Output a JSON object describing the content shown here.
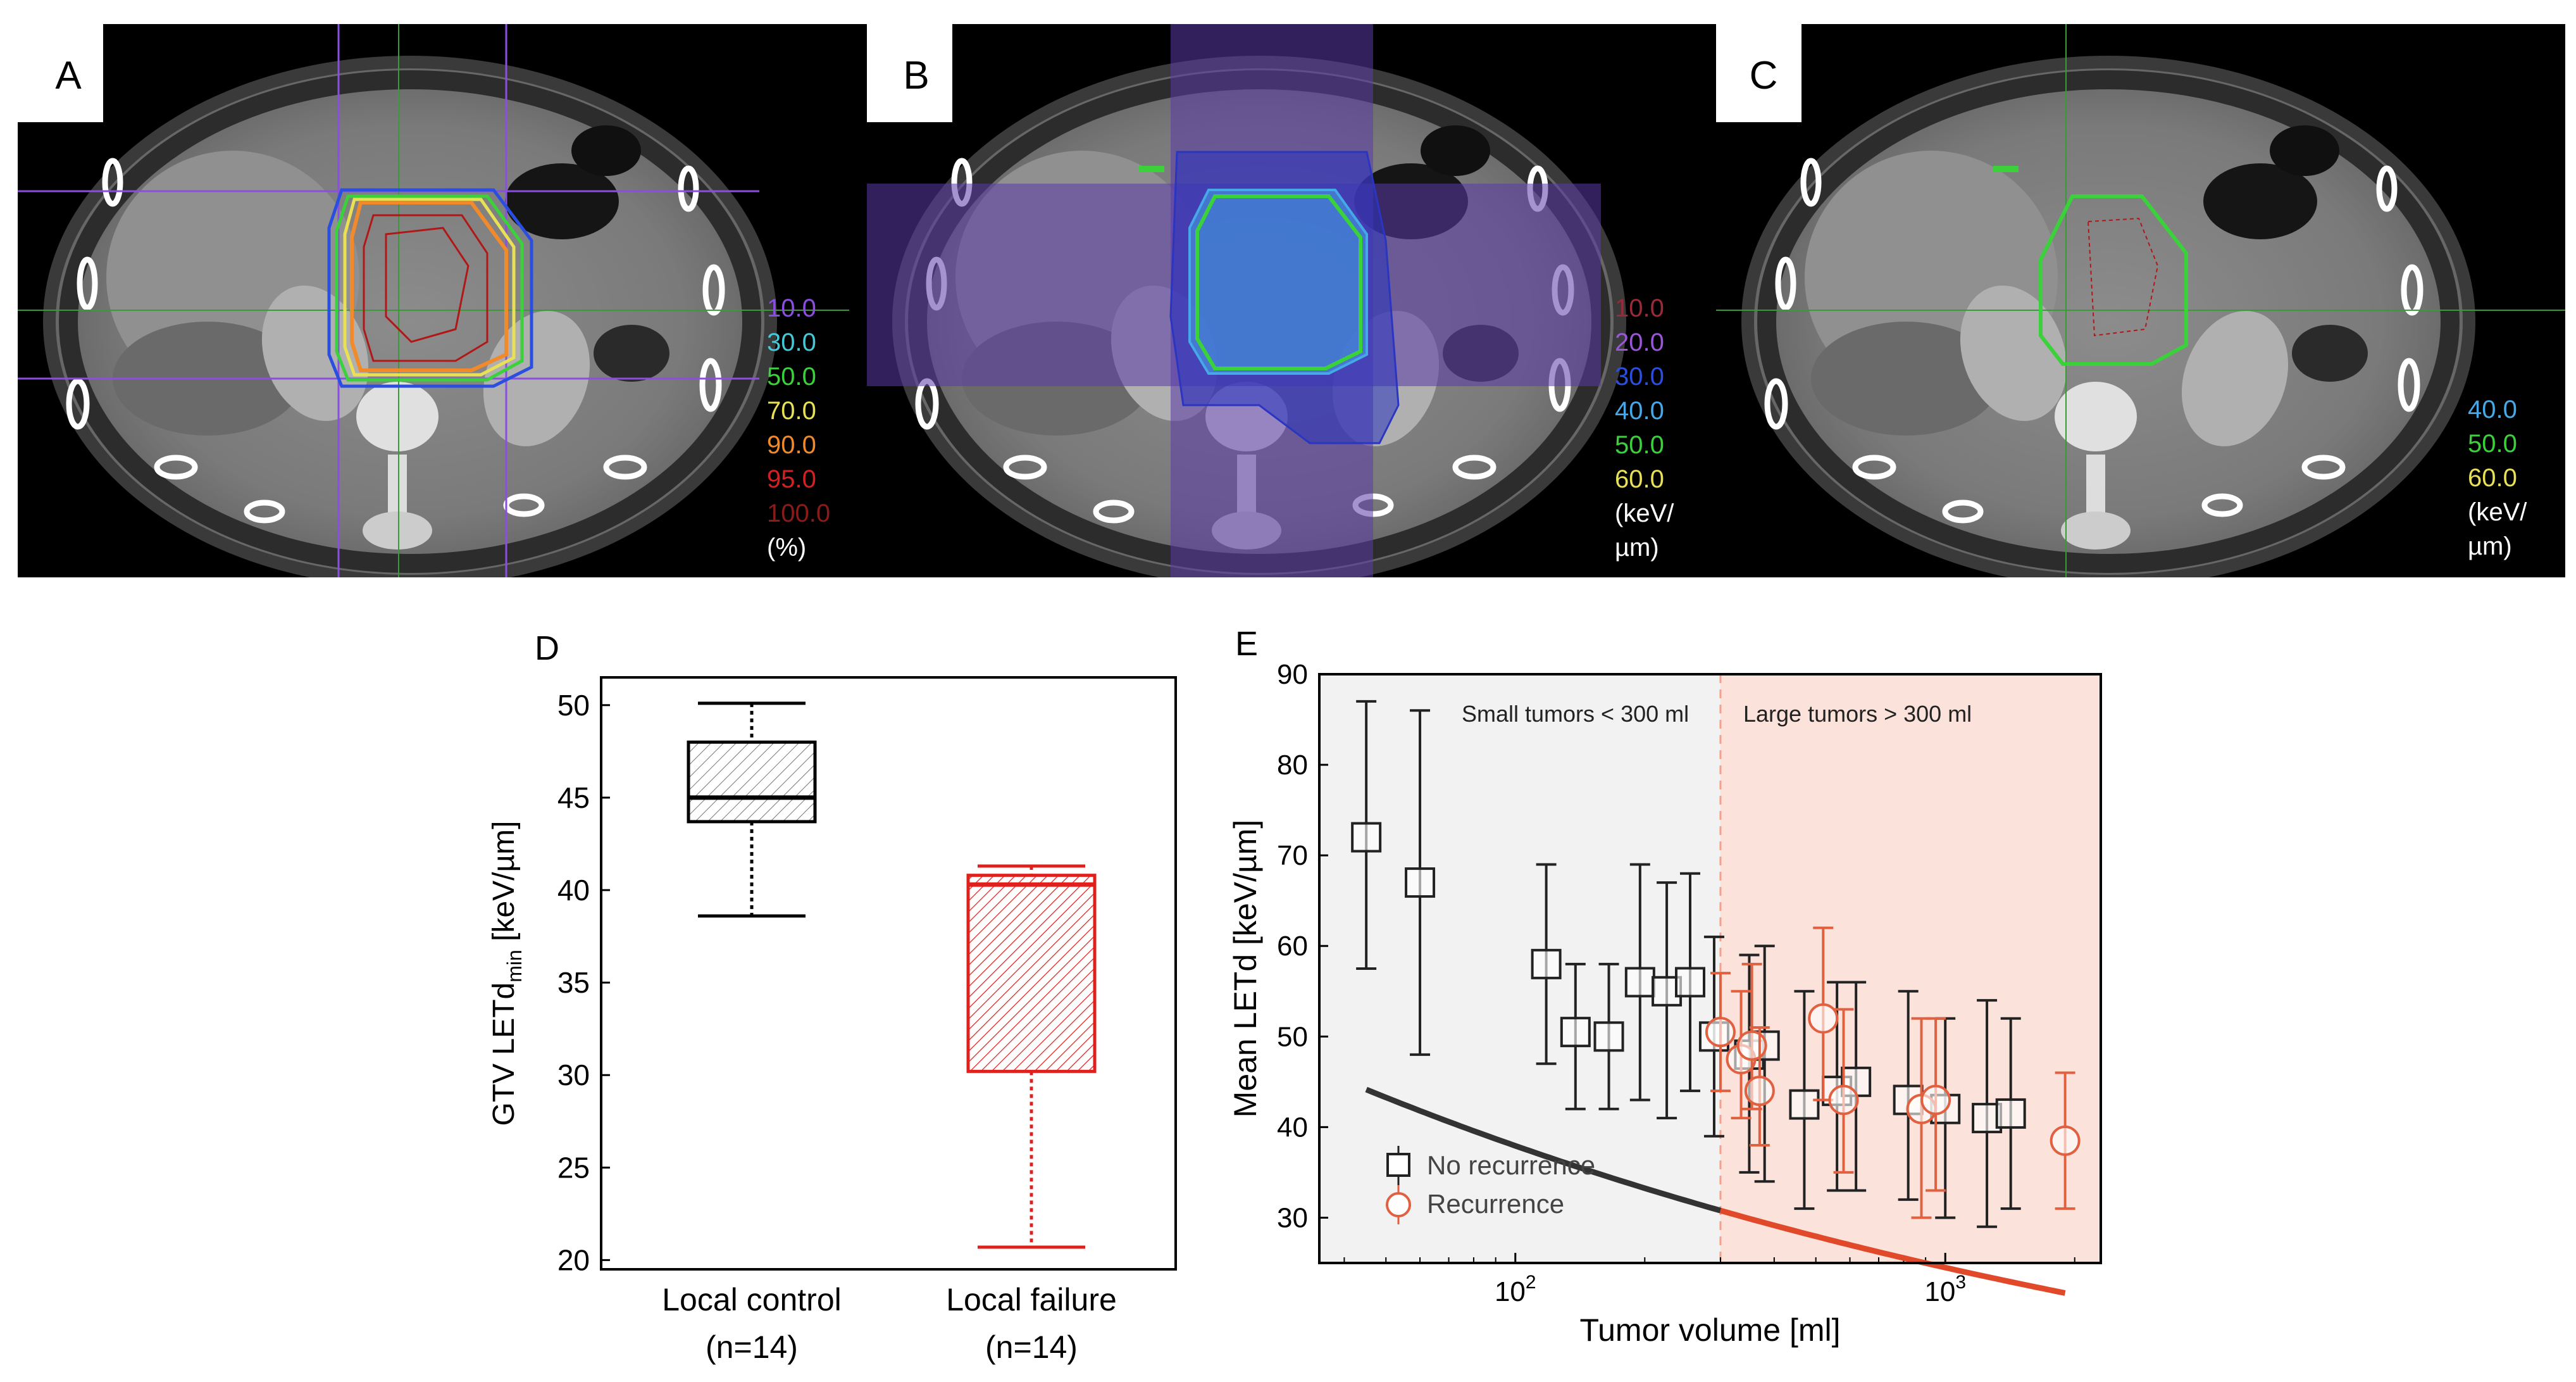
{
  "ct_panels": [
    {
      "letter": "A",
      "legend": [
        {
          "text": "10.0",
          "color": "#8a4fe0"
        },
        {
          "text": "30.0",
          "color": "#45c8d8"
        },
        {
          "text": "50.0",
          "color": "#3ad13a"
        },
        {
          "text": "70.0",
          "color": "#e8e055"
        },
        {
          "text": "90.0",
          "color": "#f08a2a"
        },
        {
          "text": "95.0",
          "color": "#d42020"
        },
        {
          "text": "100.0",
          "color": "#8b1a1a"
        },
        {
          "text": "(%)",
          "color": "#ffffff"
        }
      ]
    },
    {
      "letter": "B",
      "legend": [
        {
          "text": "10.0",
          "color": "#9a2a3a"
        },
        {
          "text": "20.0",
          "color": "#9a55d8"
        },
        {
          "text": "30.0",
          "color": "#2a4fe0"
        },
        {
          "text": "40.0",
          "color": "#45a8e8"
        },
        {
          "text": "50.0",
          "color": "#3ad13a"
        },
        {
          "text": "60.0",
          "color": "#e8e055"
        },
        {
          "text": "(keV/",
          "color": "#ffffff"
        },
        {
          "text": "µm)",
          "color": "#ffffff"
        }
      ]
    },
    {
      "letter": "C",
      "legend": [
        {
          "text": "40.0",
          "color": "#45a8e8"
        },
        {
          "text": "50.0",
          "color": "#3ad13a"
        },
        {
          "text": "60.0",
          "color": "#e8e055"
        },
        {
          "text": "(keV/",
          "color": "#ffffff"
        },
        {
          "text": "µm)",
          "color": "#ffffff"
        }
      ]
    }
  ],
  "chart_data": [
    {
      "panel": "D",
      "type": "box",
      "ylabel_main": "GTV LETd",
      "ylabel_sub": "min",
      "ylabel_unit": " [keV/µm]",
      "ylim": [
        19.5,
        51.5
      ],
      "yticks": [
        "20",
        "25",
        "30",
        "35",
        "40",
        "45",
        "50"
      ],
      "groups": [
        {
          "label": "Local control",
          "n": "(n=14)",
          "color": "#000000",
          "whisker_low": 38.6,
          "q1": 43.7,
          "median": 45.0,
          "q3": 48.0,
          "whisker_high": 50.1
        },
        {
          "label": "Local failure",
          "n": "(n=14)",
          "color": "#e0201c",
          "whisker_low": 20.7,
          "q1": 30.2,
          "median": 40.3,
          "q3": 40.8,
          "whisker_high": 41.3
        }
      ]
    },
    {
      "panel": "E",
      "type": "scatter",
      "xlabel": "Tumor volume [ml]",
      "ylabel": "Mean LETd [keV/µm]",
      "xscale": "log",
      "xlim": [
        35,
        2300
      ],
      "ylim": [
        25,
        90
      ],
      "yticks": [
        "30",
        "40",
        "50",
        "60",
        "70",
        "80",
        "90"
      ],
      "xticks": [
        {
          "base": "10",
          "exp": "2"
        },
        {
          "base": "10",
          "exp": "3"
        }
      ],
      "threshold": 300,
      "region_left_label": "Small tumors < 300 ml",
      "region_right_label": "Large tumors > 300 ml",
      "legend": [
        "No recurrence",
        "Recurrence"
      ],
      "series": [
        {
          "name": "No recurrence",
          "color": "#222222",
          "points": [
            {
              "x": 45,
              "y": 72,
              "lo": 57.5,
              "hi": 87
            },
            {
              "x": 60,
              "y": 67,
              "lo": 48,
              "hi": 86
            },
            {
              "x": 118,
              "y": 58,
              "lo": 47,
              "hi": 69
            },
            {
              "x": 138,
              "y": 50.5,
              "lo": 42,
              "hi": 58
            },
            {
              "x": 165,
              "y": 50,
              "lo": 42,
              "hi": 58
            },
            {
              "x": 195,
              "y": 56,
              "lo": 43,
              "hi": 69
            },
            {
              "x": 225,
              "y": 55,
              "lo": 41,
              "hi": 67
            },
            {
              "x": 255,
              "y": 56,
              "lo": 44,
              "hi": 68
            },
            {
              "x": 290,
              "y": 50,
              "lo": 39,
              "hi": 61
            },
            {
              "x": 350,
              "y": 48,
              "lo": 35,
              "hi": 59
            },
            {
              "x": 380,
              "y": 49,
              "lo": 34,
              "hi": 60
            },
            {
              "x": 470,
              "y": 42.5,
              "lo": 31,
              "hi": 55
            },
            {
              "x": 560,
              "y": 44,
              "lo": 33,
              "hi": 56
            },
            {
              "x": 620,
              "y": 45,
              "lo": 33,
              "hi": 56
            },
            {
              "x": 820,
              "y": 43,
              "lo": 32,
              "hi": 55
            },
            {
              "x": 1000,
              "y": 42,
              "lo": 30,
              "hi": 52
            },
            {
              "x": 1250,
              "y": 41,
              "lo": 29,
              "hi": 54
            },
            {
              "x": 1420,
              "y": 41.5,
              "lo": 31,
              "hi": 52
            }
          ]
        },
        {
          "name": "Recurrence",
          "color": "#e06040",
          "points": [
            {
              "x": 300,
              "y": 50.5,
              "lo": 44,
              "hi": 57
            },
            {
              "x": 335,
              "y": 47.5,
              "lo": 41,
              "hi": 55
            },
            {
              "x": 355,
              "y": 49,
              "lo": 42,
              "hi": 58
            },
            {
              "x": 370,
              "y": 44,
              "lo": 38,
              "hi": 51
            },
            {
              "x": 520,
              "y": 52,
              "lo": 43,
              "hi": 62
            },
            {
              "x": 580,
              "y": 43,
              "lo": 35,
              "hi": 53
            },
            {
              "x": 880,
              "y": 42,
              "lo": 30,
              "hi": 52
            },
            {
              "x": 950,
              "y": 43,
              "lo": 33,
              "hi": 52
            },
            {
              "x": 1900,
              "y": 38.5,
              "lo": 31,
              "hi": 46
            }
          ]
        }
      ],
      "fit": {
        "a": 91,
        "b": -0.19
      }
    }
  ]
}
